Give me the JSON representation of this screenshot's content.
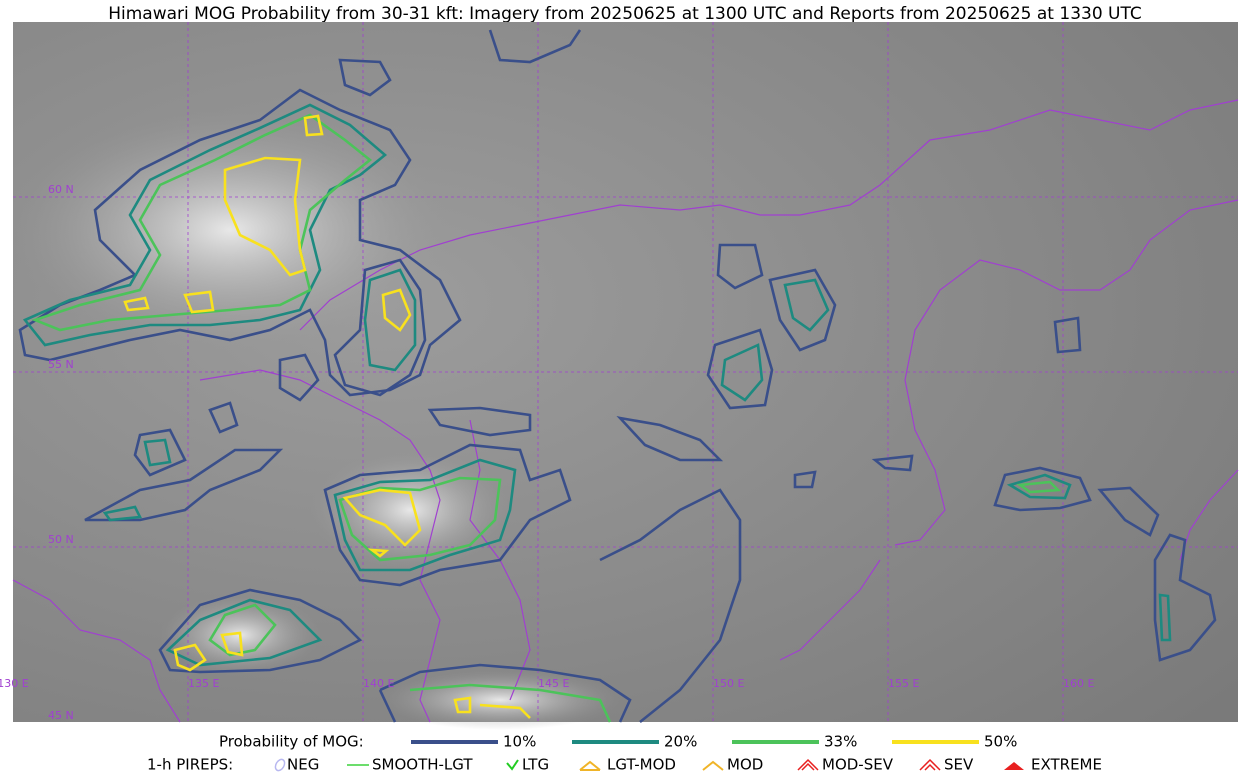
{
  "title": "Himawari MOG Probability from 30-31 kft: Imagery from 20250625 at 1300 UTC and Reports from 20250625 at 1330 UTC",
  "map": {
    "lat_labels": [
      "60 N",
      "55 N",
      "50 N",
      "45 N"
    ],
    "lon_labels": [
      "130 E",
      "135 E",
      "140 E",
      "145 E",
      "150 E",
      "155 E",
      "160 E"
    ]
  },
  "legend": {
    "probability": {
      "label": "Probability of MOG:",
      "items": [
        {
          "label": "10%",
          "color": "#3a4f8a"
        },
        {
          "label": "20%",
          "color": "#1e8a80"
        },
        {
          "label": "33%",
          "color": "#4cc35a"
        },
        {
          "label": "50%",
          "color": "#f8e11e"
        }
      ]
    },
    "pireps": {
      "label": "1-h PIREPS:",
      "items": [
        {
          "label": "NEG",
          "color": "#b8b8f0"
        },
        {
          "label": "SMOOTH-LGT",
          "color": "#3cd23c"
        },
        {
          "label": "LTG",
          "color": "#22cc22"
        },
        {
          "label": "LGT-MOD",
          "color": "#f0b428"
        },
        {
          "label": "MOD",
          "color": "#f0b428"
        },
        {
          "label": "MOD-SEV",
          "color": "#e82020"
        },
        {
          "label": "SEV",
          "color": "#e82020"
        },
        {
          "label": "EXTREME",
          "color": "#e82020"
        }
      ]
    }
  }
}
